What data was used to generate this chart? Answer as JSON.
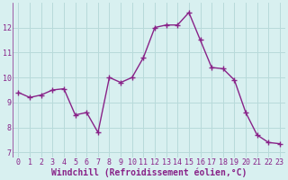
{
  "x": [
    0,
    1,
    2,
    3,
    4,
    5,
    6,
    7,
    8,
    9,
    10,
    11,
    12,
    13,
    14,
    15,
    16,
    17,
    18,
    19,
    20,
    21,
    22,
    23
  ],
  "y": [
    9.4,
    9.2,
    9.3,
    9.5,
    9.55,
    8.5,
    8.6,
    7.8,
    10.0,
    9.8,
    10.0,
    10.8,
    12.0,
    12.1,
    12.1,
    12.6,
    11.5,
    10.4,
    10.35,
    9.9,
    8.6,
    7.7,
    7.4,
    7.35
  ],
  "line_color": "#882288",
  "marker": "P",
  "marker_size": 3,
  "bg_color": "#d8f0f0",
  "grid_color": "#b8dada",
  "xlabel": "Windchill (Refroidissement éolien,°C)",
  "xlabel_color": "#882288",
  "tick_color": "#882288",
  "ylim": [
    6.8,
    13.0
  ],
  "xlim": [
    -0.5,
    23.5
  ],
  "yticks": [
    7,
    8,
    9,
    10,
    11,
    12
  ],
  "xticks": [
    0,
    1,
    2,
    3,
    4,
    5,
    6,
    7,
    8,
    9,
    10,
    11,
    12,
    13,
    14,
    15,
    16,
    17,
    18,
    19,
    20,
    21,
    22,
    23
  ],
  "tick_fontsize": 6,
  "xlabel_fontsize": 7,
  "linewidth": 1.0
}
